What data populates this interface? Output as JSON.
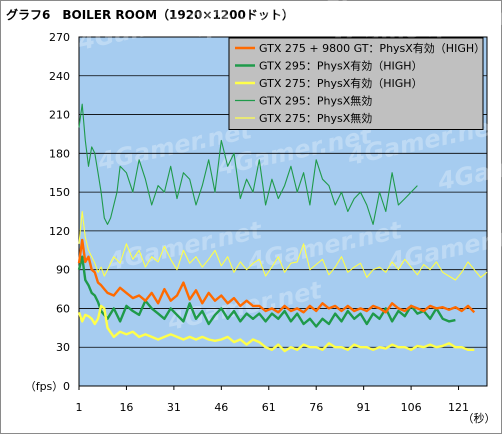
{
  "chart_data": {
    "type": "line",
    "title": "グラフ6　BOILER ROOM（1920×1200ドット）",
    "ylabel": "（fps）",
    "xlabel": "（秒）",
    "ylim": [
      0,
      270
    ],
    "xlim": [
      1,
      130
    ],
    "yticks": [
      0,
      30,
      60,
      90,
      120,
      150,
      180,
      210,
      240,
      270
    ],
    "xticks": [
      1,
      16,
      31,
      46,
      61,
      76,
      91,
      106,
      121
    ],
    "plot_background": "#a6ccf0",
    "grid": true,
    "legend_position": "top-right",
    "series": [
      {
        "name": "GTX 275 + 9800 GT：PhysX有効（HIGH）",
        "color": "#ff6a00",
        "x": [
          1,
          2,
          3,
          4,
          5,
          6,
          7,
          8,
          9,
          10,
          12,
          14,
          16,
          18,
          20,
          22,
          24,
          26,
          28,
          30,
          32,
          34,
          36,
          38,
          40,
          42,
          44,
          46,
          48,
          50,
          52,
          54,
          56,
          58,
          60,
          62,
          64,
          66,
          68,
          70,
          72,
          74,
          76,
          78,
          80,
          82,
          84,
          86,
          88,
          90,
          92,
          94,
          96,
          98,
          100,
          102,
          104,
          106,
          108,
          110,
          112,
          114,
          116,
          118,
          120,
          122,
          124,
          126
        ],
        "values": [
          95,
          113,
          96,
          100,
          90,
          88,
          80,
          78,
          75,
          72,
          70,
          76,
          72,
          68,
          70,
          66,
          72,
          64,
          75,
          66,
          70,
          80,
          67,
          74,
          64,
          72,
          66,
          70,
          64,
          68,
          62,
          66,
          62,
          62,
          58,
          60,
          57,
          62,
          58,
          60,
          57,
          62,
          58,
          64,
          60,
          62,
          58,
          62,
          58,
          60,
          58,
          62,
          60,
          57,
          64,
          60,
          58,
          62,
          60,
          58,
          62,
          60,
          61,
          59,
          61,
          58,
          62,
          57
        ]
      },
      {
        "name": "GTX 295：PhysX有効（HIGH）",
        "color": "#1f9a4a",
        "x": [
          1,
          2,
          3,
          4,
          5,
          6,
          7,
          8,
          9,
          10,
          12,
          14,
          16,
          18,
          20,
          22,
          24,
          26,
          28,
          30,
          32,
          34,
          36,
          38,
          40,
          42,
          44,
          46,
          48,
          50,
          52,
          54,
          56,
          58,
          60,
          62,
          64,
          66,
          68,
          70,
          72,
          74,
          76,
          78,
          80,
          82,
          84,
          86,
          88,
          90,
          92,
          94,
          96,
          98,
          100,
          102,
          104,
          106,
          108,
          110,
          112,
          114,
          116,
          118,
          120
        ],
        "values": [
          90,
          100,
          82,
          78,
          72,
          70,
          65,
          58,
          55,
          52,
          60,
          50,
          62,
          58,
          55,
          66,
          60,
          56,
          52,
          60,
          55,
          50,
          64,
          52,
          58,
          48,
          55,
          60,
          52,
          58,
          50,
          56,
          52,
          56,
          50,
          56,
          52,
          58,
          50,
          56,
          48,
          52,
          46,
          52,
          48,
          56,
          50,
          58,
          52,
          56,
          48,
          56,
          52,
          60,
          50,
          58,
          54,
          62,
          56,
          58,
          52,
          60,
          52,
          50,
          51
        ]
      },
      {
        "name": "GTX 275：PhysX有効（HIGH）",
        "color": "#ffff4a",
        "x": [
          1,
          2,
          3,
          4,
          5,
          6,
          7,
          8,
          9,
          10,
          12,
          14,
          16,
          18,
          20,
          22,
          24,
          26,
          28,
          30,
          32,
          34,
          36,
          38,
          40,
          42,
          44,
          46,
          48,
          50,
          52,
          54,
          56,
          58,
          60,
          62,
          64,
          66,
          68,
          70,
          72,
          74,
          76,
          78,
          80,
          82,
          84,
          86,
          88,
          90,
          92,
          94,
          96,
          98,
          100,
          102,
          104,
          106,
          108,
          110,
          112,
          114,
          116,
          118,
          120,
          122,
          124,
          126
        ],
        "values": [
          57,
          50,
          55,
          54,
          52,
          48,
          52,
          62,
          60,
          45,
          38,
          42,
          40,
          42,
          38,
          40,
          38,
          36,
          38,
          40,
          38,
          36,
          38,
          36,
          38,
          36,
          35,
          36,
          38,
          34,
          36,
          32,
          36,
          34,
          30,
          28,
          32,
          27,
          30,
          28,
          32,
          30,
          30,
          28,
          33,
          30,
          30,
          28,
          32,
          30,
          30,
          28,
          30,
          29,
          32,
          30,
          30,
          28,
          31,
          30,
          32,
          30,
          31,
          33,
          30,
          30,
          28,
          28
        ]
      },
      {
        "name": "GTX 295：PhysX無効",
        "color": "#1f9a4a",
        "x": [
          1,
          2,
          3,
          4,
          5,
          6,
          7,
          8,
          9,
          10,
          11,
          12,
          13,
          14,
          16,
          18,
          20,
          22,
          24,
          26,
          28,
          30,
          32,
          34,
          36,
          38,
          40,
          42,
          44,
          46,
          48,
          50,
          52,
          54,
          56,
          58,
          60,
          62,
          64,
          66,
          68,
          70,
          72,
          74,
          76,
          78,
          80,
          82,
          84,
          86,
          88,
          90,
          92,
          94,
          96,
          98,
          100,
          102,
          104,
          106,
          108
        ],
        "values": [
          200,
          218,
          190,
          170,
          185,
          180,
          165,
          150,
          130,
          125,
          130,
          140,
          150,
          170,
          165,
          150,
          175,
          160,
          140,
          155,
          150,
          170,
          145,
          165,
          160,
          140,
          155,
          175,
          150,
          190,
          170,
          180,
          145,
          160,
          150,
          175,
          140,
          160,
          145,
          155,
          170,
          150,
          165,
          140,
          175,
          160,
          155,
          140,
          150,
          135,
          145,
          150,
          140,
          125,
          150,
          135,
          165,
          140,
          145,
          150,
          155
        ]
      },
      {
        "name": "GTX 275：PhysX無効",
        "color": "#ffff4a",
        "x": [
          1,
          2,
          3,
          4,
          5,
          6,
          7,
          8,
          9,
          10,
          12,
          14,
          16,
          18,
          20,
          22,
          24,
          26,
          28,
          30,
          32,
          34,
          36,
          38,
          40,
          42,
          44,
          46,
          48,
          50,
          52,
          54,
          56,
          58,
          60,
          62,
          64,
          66,
          68,
          70,
          72,
          74,
          76,
          78,
          80,
          82,
          84,
          86,
          88,
          90,
          92,
          94,
          96,
          98,
          100,
          102,
          104,
          106,
          108,
          110,
          112,
          114,
          116,
          118,
          120,
          122,
          124,
          126,
          128,
          130
        ],
        "values": [
          110,
          135,
          115,
          105,
          100,
          95,
          88,
          92,
          85,
          90,
          100,
          95,
          110,
          98,
          105,
          92,
          100,
          96,
          108,
          98,
          90,
          105,
          95,
          100,
          92,
          98,
          105,
          93,
          100,
          88,
          96,
          90,
          95,
          98,
          85,
          92,
          100,
          88,
          95,
          96,
          110,
          90,
          94,
          98,
          86,
          92,
          100,
          88,
          92,
          95,
          84,
          90,
          92,
          88,
          96,
          90,
          98,
          92,
          86,
          94,
          90,
          96,
          88,
          85,
          82,
          88,
          96,
          90,
          84,
          88
        ]
      }
    ]
  },
  "watermark": "4Gamer.net"
}
